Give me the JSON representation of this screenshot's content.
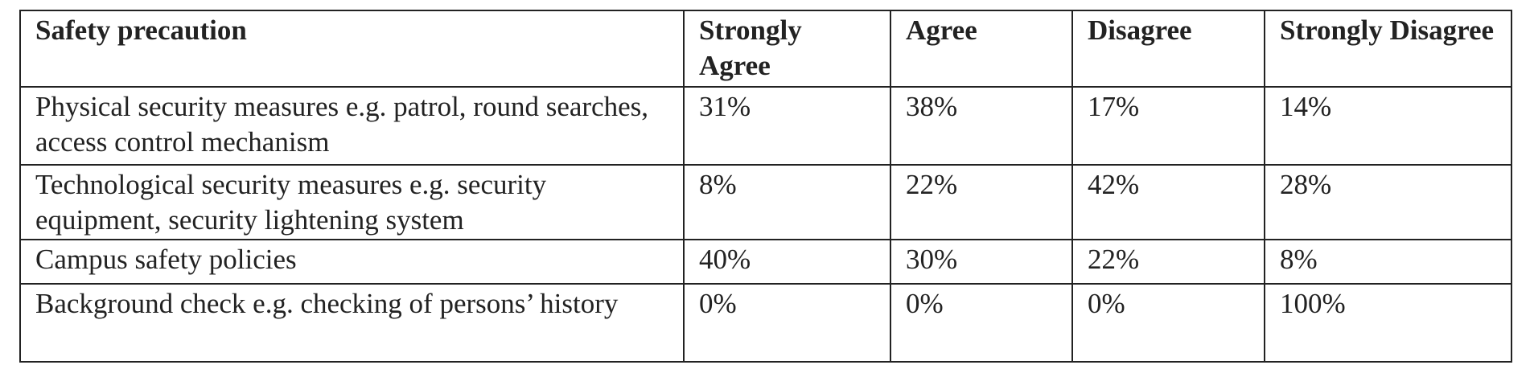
{
  "table": {
    "header": [
      "Safety precaution",
      "Strongly Agree",
      "Agree",
      "Disagree",
      "Strongly Disagree"
    ],
    "rows": [
      [
        "Physical security measures e.g. patrol, round searches, access control mechanism",
        "31%",
        "38%",
        "17%",
        "14%"
      ],
      [
        "Technological security measures e.g. security equipment, security lightening system",
        "8%",
        "22%",
        "42%",
        "28%"
      ],
      [
        "Campus safety policies",
        "40%",
        "30%",
        "22%",
        "8%"
      ],
      [
        "Background check e.g. checking of persons’ history",
        "0%",
        "0%",
        "0%",
        "100%"
      ]
    ]
  }
}
